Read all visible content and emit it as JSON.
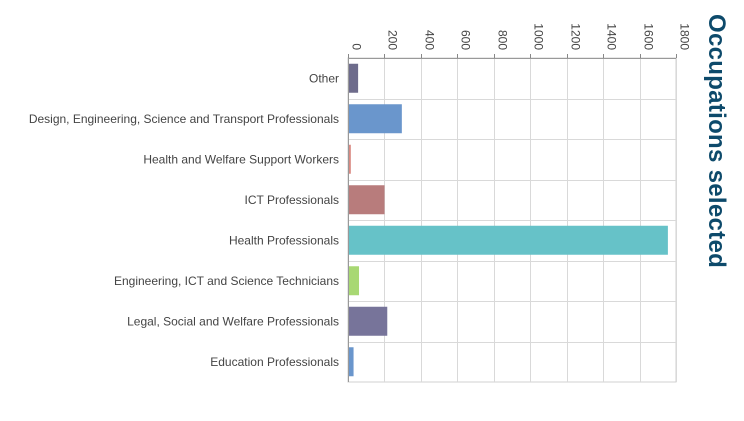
{
  "chart_data": {
    "type": "bar",
    "orientation": "horizontal",
    "title": "Occupations selected",
    "xlabel": "",
    "ylabel": "",
    "xlim": [
      0,
      1800
    ],
    "ticks": [
      0,
      200,
      400,
      600,
      800,
      1000,
      1200,
      1400,
      1600,
      1800
    ],
    "tick_labels": [
      "0",
      "200",
      "400",
      "600",
      "800",
      "1000",
      "1200",
      "1400",
      "1600",
      "1800"
    ],
    "grid": true,
    "legend": "none",
    "categories": [
      "Other",
      "Design, Engineering, Science and Transport Professionals",
      "Health and Welfare Support Workers",
      "ICT Professionals",
      "Health Professionals",
      "Engineering, ICT and Science Technicians",
      "Legal, Social and Welfare Professionals",
      "Education Professionals"
    ],
    "values": [
      50,
      290,
      10,
      195,
      1750,
      55,
      210,
      25
    ],
    "colors": [
      "#6e6c8c",
      "#6a96cc",
      "#d98a82",
      "#b87c7c",
      "#66c2c8",
      "#a8d873",
      "#77749a",
      "#6a96cc"
    ]
  }
}
